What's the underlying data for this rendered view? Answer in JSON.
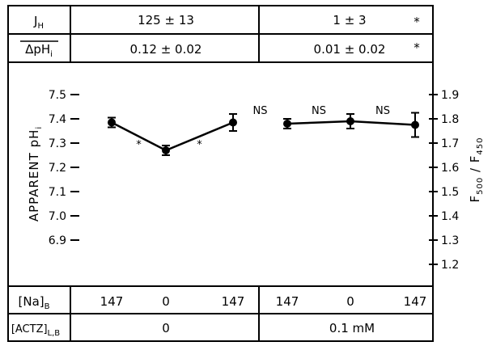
{
  "table_top": {
    "rows": [
      {
        "label_main": "J",
        "label_sub": "H",
        "cells": [
          "125 ± 13",
          "1 ± 3"
        ],
        "star": "*"
      },
      {
        "label_main": "ΔpH",
        "label_sub": "i",
        "cells": [
          "0.12 ± 0.02",
          "0.01 ± 0.02"
        ],
        "star": "*"
      }
    ]
  },
  "table_bottom": {
    "na_label_main": "[Na]",
    "na_label_sub": "B",
    "na_values": [
      "147",
      "0",
      "147",
      "147",
      "0",
      "147"
    ],
    "actz_label_main": "[ACTZ]",
    "actz_label_sub": "L,B",
    "actz_values": [
      "0",
      "0.1 mM"
    ]
  },
  "chart_data": {
    "type": "line",
    "ylabel_main": "APPARENT pH",
    "ylabel_sub": "i",
    "y2label_main": "F",
    "y2label_sub1": "500",
    "y2label_mid": " / F",
    "y2label_sub2": "450",
    "ylim": [
      6.85,
      7.55
    ],
    "yticks": [
      "7.5",
      "7.4",
      "7.3",
      "7.2",
      "7.1",
      "7.0",
      "6.9"
    ],
    "ytick_values": [
      7.5,
      7.4,
      7.3,
      7.2,
      7.1,
      7.0,
      6.9
    ],
    "y2ticks": [
      "1.9",
      "1.8",
      "1.7",
      "1.6",
      "1.5",
      "1.4",
      "1.3",
      "1.2"
    ],
    "y2tick_values": [
      7.5,
      7.4,
      7.3,
      7.2,
      7.1,
      7.0,
      6.9,
      6.8
    ],
    "series": [
      {
        "points": [
          {
            "x": 0,
            "y": 7.385,
            "err": 0.02
          },
          {
            "x": 1,
            "y": 7.27,
            "err": 0.02
          },
          {
            "x": 2,
            "y": 7.385,
            "err": 0.035
          }
        ]
      },
      {
        "points": [
          {
            "x": 3,
            "y": 7.38,
            "err": 0.02
          },
          {
            "x": 4,
            "y": 7.39,
            "err": 0.03
          },
          {
            "x": 5,
            "y": 7.375,
            "err": 0.05
          }
        ]
      }
    ],
    "annotations": [
      {
        "text": "*",
        "between": [
          0,
          1
        ],
        "y": 7.3
      },
      {
        "text": "*",
        "between": [
          1,
          2
        ],
        "y": 7.3
      },
      {
        "text": "NS",
        "between": [
          2,
          3
        ],
        "y": 7.44
      },
      {
        "text": "NS",
        "between": [
          3,
          4
        ],
        "y": 7.44
      },
      {
        "text": "NS",
        "between": [
          4,
          5
        ],
        "y": 7.44
      }
    ]
  }
}
